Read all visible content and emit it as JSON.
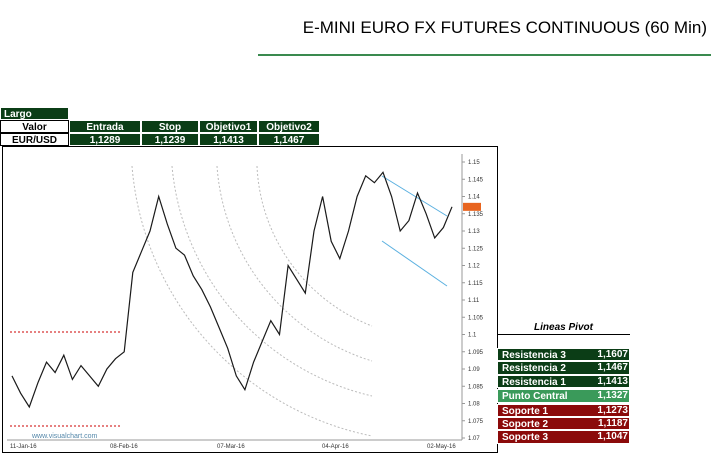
{
  "header": {
    "title": "E-MINI EURO FX FUTURES CONTINUOUS (60 Min)"
  },
  "position": {
    "title": "Largo",
    "columns": [
      "Valor",
      "Entrada",
      "Stop",
      "Objetivo1",
      "Objetivo2"
    ],
    "row": [
      "EUR/USD",
      "1,1289",
      "1,1239",
      "1,1413",
      "1,1467"
    ]
  },
  "chart_data": {
    "type": "line",
    "watermark": "www.visualchart.com",
    "color": "#1a1a1a",
    "x_labels": [
      "11-Jan-16",
      "08-Feb-16",
      "07-Mar-16",
      "04-Apr-16",
      "02-May-16"
    ],
    "values": [
      1.088,
      1.083,
      1.079,
      1.086,
      1.092,
      1.089,
      1.094,
      1.087,
      1.091,
      1.088,
      1.085,
      1.09,
      1.093,
      1.095,
      1.118,
      1.124,
      1.13,
      1.14,
      1.132,
      1.125,
      1.123,
      1.117,
      1.113,
      1.108,
      1.102,
      1.096,
      1.088,
      1.084,
      1.092,
      1.098,
      1.104,
      1.1,
      1.12,
      1.116,
      1.112,
      1.13,
      1.14,
      1.127,
      1.122,
      1.13,
      1.14,
      1.146,
      1.144,
      1.147,
      1.14,
      1.13,
      1.133,
      1.141,
      1.135,
      1.128,
      1.131,
      1.137
    ],
    "ylim": [
      1.07,
      1.15
    ],
    "yticks": [
      1.07,
      1.075,
      1.08,
      1.085,
      1.09,
      1.095,
      1.1,
      1.105,
      1.11,
      1.115,
      1.12,
      1.125,
      1.13,
      1.135,
      1.14,
      1.145,
      1.15
    ]
  },
  "pivot": {
    "title": "Lineas Pivot",
    "rows": [
      [
        "Resistencia 3",
        "1,1607"
      ],
      [
        "Resistencia 2",
        "1,1467"
      ],
      [
        "Resistencia 1",
        "1,1413"
      ],
      [
        "Punto Central",
        "1,1327"
      ],
      [
        "Soporte 1",
        "1,1273"
      ],
      [
        "Soporte 2",
        "1,1187"
      ],
      [
        "Soporte 3",
        "1,1047"
      ]
    ]
  }
}
